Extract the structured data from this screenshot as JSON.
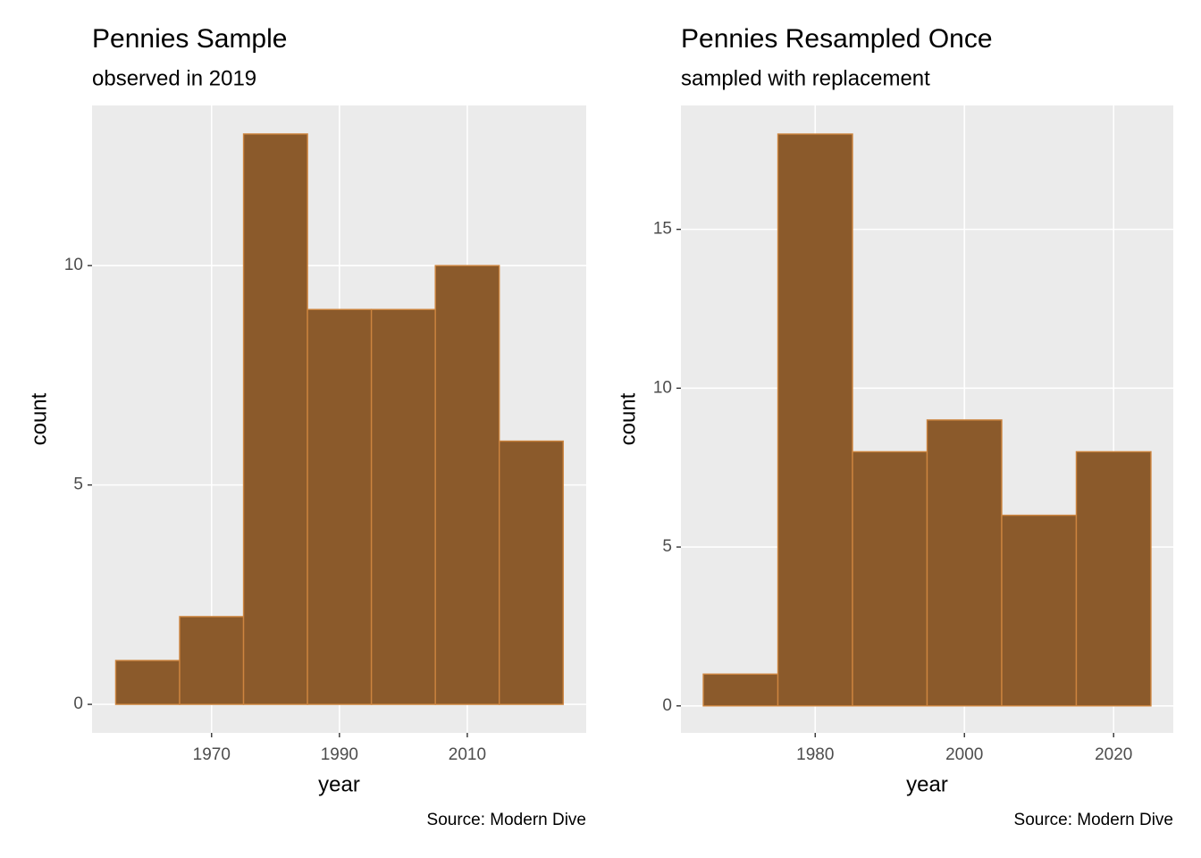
{
  "chart_data": [
    {
      "type": "histogram",
      "title": "Pennies Sample",
      "subtitle": "observed in 2019",
      "xlabel": "year",
      "ylabel": "count",
      "caption": "Source: Modern Dive",
      "bins": [
        1955,
        1965,
        1975,
        1985,
        1995,
        2005,
        2015,
        2025
      ],
      "values": [
        1,
        2,
        13,
        9,
        9,
        10,
        6
      ],
      "color": "#8b5a2b",
      "edgecolor": "#cd853f",
      "xlim": [
        1951.3,
        2028.6
      ],
      "ylim": [
        -0.65,
        13.65
      ],
      "xticks": [
        1970,
        1990,
        2010
      ],
      "yticks": [
        0,
        5,
        10
      ],
      "grid": true
    },
    {
      "type": "histogram",
      "title": "Pennies Resampled Once",
      "subtitle": "sampled with replacement",
      "xlabel": "year",
      "ylabel": "count",
      "caption": "Source: Modern Dive",
      "bins": [
        1965,
        1975,
        1985,
        1995,
        2005,
        2015,
        2025
      ],
      "values": [
        1,
        18,
        8,
        9,
        6,
        8
      ],
      "color": "#8b5a2b",
      "edgecolor": "#cd853f",
      "xlim": [
        1962.0,
        2028.0
      ],
      "ylim": [
        -0.85,
        18.9
      ],
      "xticks": [
        1980,
        2000,
        2020
      ],
      "yticks": [
        0,
        5,
        10,
        15
      ],
      "grid": true
    }
  ]
}
